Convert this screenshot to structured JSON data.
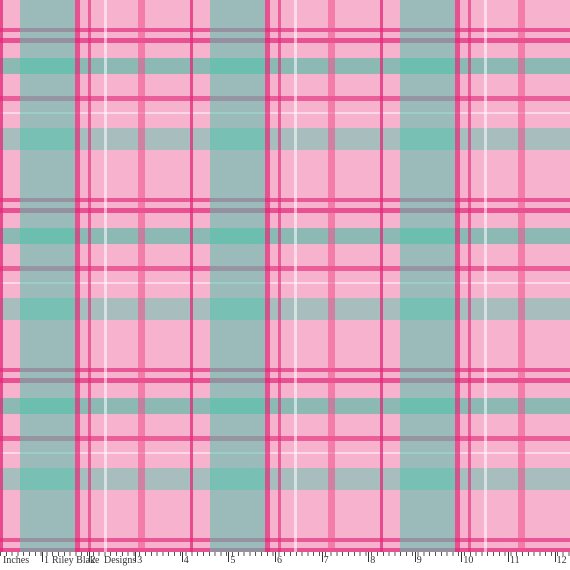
{
  "ruler": {
    "unit": "Inches",
    "numbers": [
      1,
      2,
      3,
      4,
      5,
      6,
      7,
      8,
      9,
      10,
      11,
      12
    ],
    "brand": [
      "Riley Blake",
      "Designs"
    ]
  }
}
